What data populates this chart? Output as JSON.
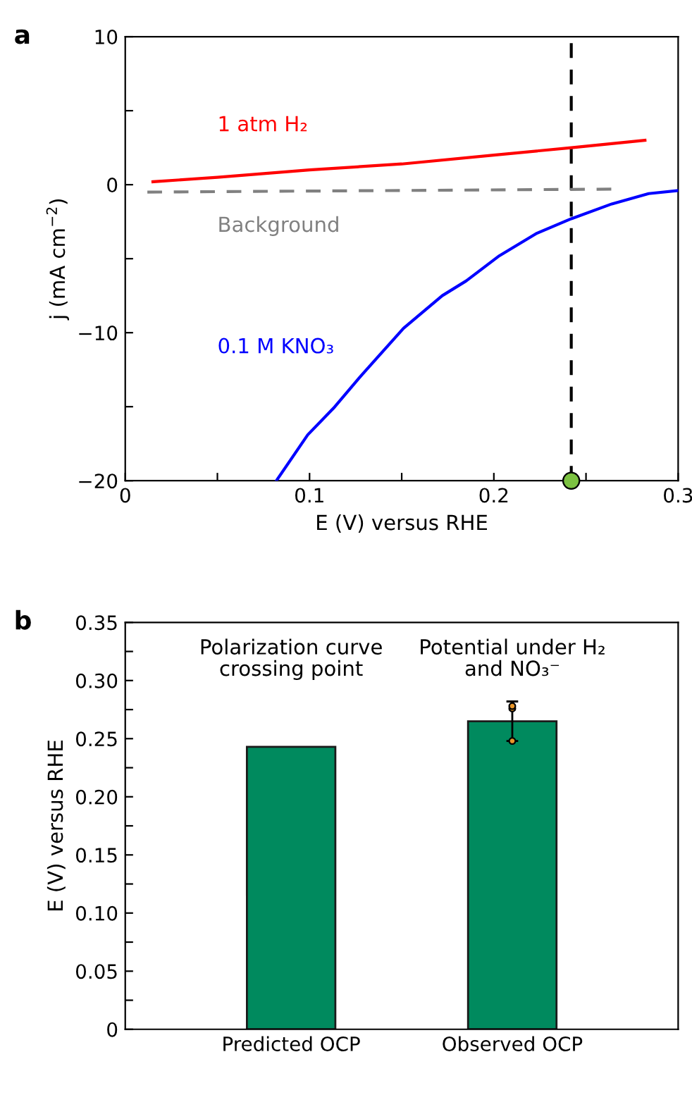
{
  "chart_data": [
    {
      "type": "line",
      "title": "a",
      "xlabel": "E (V) versus RHE",
      "ylabel": "j (mA cm$^{−2}$)",
      "xlim": [
        0,
        0.3
      ],
      "ylim": [
        -20,
        10
      ],
      "xticks": [
        0,
        {
          "value": 0.05,
          "label": null
        },
        0.1,
        {
          "value": 0.15,
          "label": null
        },
        0.2,
        {
          "value": 0.25,
          "label": null
        },
        0.3
      ],
      "yticks": [
        {
          "value": -20,
          "label": "−20"
        },
        {
          "value": -15,
          "label": null
        },
        {
          "value": -10,
          "label": "−10"
        },
        {
          "value": -5,
          "label": null
        },
        0,
        {
          "value": 5,
          "label": null
        },
        10
      ],
      "grid": false,
      "legend": false,
      "series": [
        {
          "name": "1 atm H₂",
          "color": "#ff0000",
          "x": [
            0.015,
            0.05,
            0.1,
            0.15,
            0.2,
            0.242,
            0.282
          ],
          "values": [
            0.2,
            0.5,
            1.0,
            1.4,
            2.0,
            2.5,
            3.0
          ]
        },
        {
          "name": "Background",
          "color": "#808080",
          "line_style": "dashed",
          "x": [
            0.012,
            0.265
          ],
          "values": [
            -0.5,
            -0.3
          ]
        },
        {
          "name": "0.1 M KNO₃",
          "color": "#0000ff",
          "x": [
            0.082,
            0.099,
            0.113,
            0.128,
            0.151,
            0.172,
            0.185,
            0.203,
            0.223,
            0.242,
            0.264,
            0.284,
            0.3
          ],
          "values": [
            -20,
            -16.9,
            -15.1,
            -12.9,
            -9.7,
            -7.5,
            -6.5,
            -4.8,
            -3.3,
            -2.3,
            -1.3,
            -0.6,
            -0.4
          ]
        },
        {
          "type": "scatter",
          "color": "#7cc242",
          "marker": "circle",
          "x": [
            0.242
          ],
          "values": [
            -20
          ]
        }
      ],
      "ref_lines": [
        {
          "axis": "x",
          "value": 0.242,
          "color": "#000000",
          "line_style": "dashed"
        }
      ]
    },
    {
      "type": "bar",
      "title": "b",
      "ylabel": "E (V) versus RHE",
      "categories": [
        "Predicted OCP",
        "Observed OCP"
      ],
      "values": [
        0.243,
        0.265
      ],
      "color": "#008a5e",
      "errors": [
        null,
        [
          0.248,
          0.282
        ]
      ],
      "ylim": [
        0,
        0.35
      ],
      "yticks": [
        0,
        {
          "value": 0.025,
          "label": null
        },
        {
          "value": 0.05,
          "label": "0.05"
        },
        {
          "value": 0.075,
          "label": null
        },
        {
          "value": 0.1,
          "label": "0.10"
        },
        {
          "value": 0.125,
          "label": null
        },
        {
          "value": 0.15,
          "label": "0.15"
        },
        {
          "value": 0.175,
          "label": null
        },
        {
          "value": 0.2,
          "label": "0.20"
        },
        {
          "value": 0.225,
          "label": null
        },
        {
          "value": 0.25,
          "label": "0.25"
        },
        {
          "value": 0.275,
          "label": null
        },
        {
          "value": 0.3,
          "label": "0.30"
        },
        {
          "value": 0.325,
          "label": null
        },
        {
          "value": 0.35,
          "label": "0.35"
        }
      ],
      "grid": false,
      "legend": false,
      "series": [
        {
          "type": "scatter",
          "color": "#e8962a",
          "marker": "circle",
          "x": [
            "Observed OCP",
            "Observed OCP",
            "Observed OCP"
          ],
          "values": [
            0.248,
            0.276,
            0.278
          ]
        }
      ],
      "annotations": [
        "Polarization curve\ncrossing point",
        "Potential under H₂\nand NO₃⁻"
      ]
    }
  ]
}
